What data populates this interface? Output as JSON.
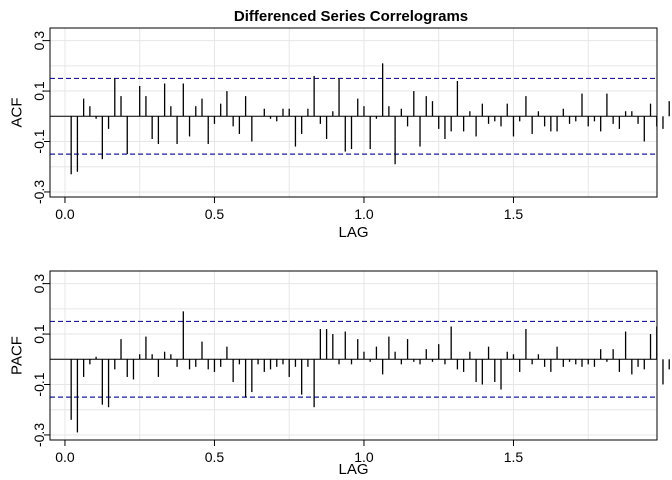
{
  "chart_data": [
    {
      "type": "bar",
      "title": "Differenced Series Correlograms",
      "xlabel": "LAG",
      "ylabel": "ACF",
      "xlim": [
        -0.05,
        1.98
      ],
      "ylim": [
        -0.32,
        0.35
      ],
      "xticks": [
        0.0,
        0.5,
        1.0,
        1.5
      ],
      "xtick_labels": [
        "0.0",
        "0.5",
        "1.0",
        "1.5"
      ],
      "yticks": [
        0.3,
        0.1,
        -0.1,
        -0.3
      ],
      "ytick_labels": [
        "0.3",
        "0.1",
        "-0.1",
        "-0.3"
      ],
      "grid": true,
      "conf_limits": [
        0.15,
        -0.15
      ],
      "lag_step": 0.0208333,
      "values": [
        -0.23,
        -0.22,
        0.07,
        0.04,
        -0.01,
        -0.17,
        -0.05,
        0.15,
        0.08,
        -0.15,
        0.0,
        0.12,
        0.08,
        -0.09,
        -0.11,
        0.13,
        0.04,
        -0.11,
        0.13,
        -0.08,
        0.04,
        0.07,
        -0.11,
        -0.03,
        0.05,
        0.1,
        -0.04,
        -0.07,
        0.08,
        -0.1,
        0.0,
        0.03,
        -0.01,
        -0.02,
        0.03,
        0.03,
        -0.12,
        -0.07,
        0.03,
        0.16,
        -0.03,
        -0.09,
        0.02,
        0.15,
        -0.14,
        -0.13,
        0.07,
        0.04,
        -0.13,
        -0.01,
        0.21,
        0.04,
        -0.19,
        0.03,
        -0.04,
        0.1,
        -0.12,
        0.08,
        0.06,
        -0.05,
        -0.09,
        -0.06,
        0.14,
        -0.06,
        0.02,
        -0.08,
        0.05,
        -0.03,
        -0.02,
        -0.04,
        0.05,
        -0.08,
        -0.02,
        0.08,
        -0.07,
        0.02,
        -0.04,
        -0.06,
        -0.06,
        0.03,
        -0.03,
        -0.02,
        0.09,
        -0.04,
        -0.02,
        -0.06,
        0.09,
        -0.03,
        -0.05,
        0.02,
        0.02,
        -0.03,
        -0.1,
        0.05,
        -0.04,
        -0.05,
        0.06,
        0.04,
        0.1
      ]
    },
    {
      "type": "bar",
      "title": "",
      "xlabel": "LAG",
      "ylabel": "PACF",
      "xlim": [
        -0.05,
        1.98
      ],
      "ylim": [
        -0.32,
        0.35
      ],
      "xticks": [
        0.0,
        0.5,
        1.0,
        1.5
      ],
      "xtick_labels": [
        "0.0",
        "0.5",
        "1.0",
        "1.5"
      ],
      "yticks": [
        0.3,
        0.1,
        -0.1,
        -0.3
      ],
      "ytick_labels": [
        "0.3",
        "0.1",
        "-0.1",
        "-0.3"
      ],
      "grid": true,
      "conf_limits": [
        0.15,
        -0.15
      ],
      "lag_step": 0.0208333,
      "values": [
        -0.24,
        -0.29,
        -0.07,
        -0.02,
        0.01,
        -0.18,
        -0.19,
        -0.04,
        0.08,
        -0.07,
        -0.08,
        0.02,
        0.09,
        0.02,
        -0.07,
        0.03,
        0.02,
        -0.03,
        0.19,
        -0.04,
        -0.03,
        0.07,
        -0.04,
        -0.05,
        -0.03,
        0.05,
        -0.09,
        -0.02,
        -0.15,
        -0.13,
        -0.02,
        -0.05,
        -0.04,
        -0.03,
        -0.02,
        -0.07,
        -0.03,
        -0.14,
        -0.03,
        -0.19,
        0.12,
        0.12,
        0.1,
        -0.02,
        0.11,
        -0.02,
        0.08,
        0.03,
        -0.01,
        0.05,
        -0.06,
        0.09,
        0.03,
        -0.02,
        0.08,
        -0.01,
        -0.02,
        0.04,
        -0.01,
        0.06,
        -0.02,
        0.13,
        -0.04,
        -0.05,
        0.03,
        -0.09,
        -0.1,
        0.05,
        -0.09,
        -0.12,
        0.03,
        0.02,
        -0.05,
        0.12,
        -0.02,
        0.02,
        -0.03,
        -0.05,
        0.05,
        -0.03,
        -0.01,
        -0.02,
        -0.03,
        -0.02,
        -0.03,
        0.04,
        -0.01,
        0.04,
        -0.05,
        0.11,
        -0.06,
        -0.03,
        -0.04,
        0.1,
        0.13,
        -0.1,
        -0.04,
        -0.06,
        -0.03
      ]
    }
  ]
}
